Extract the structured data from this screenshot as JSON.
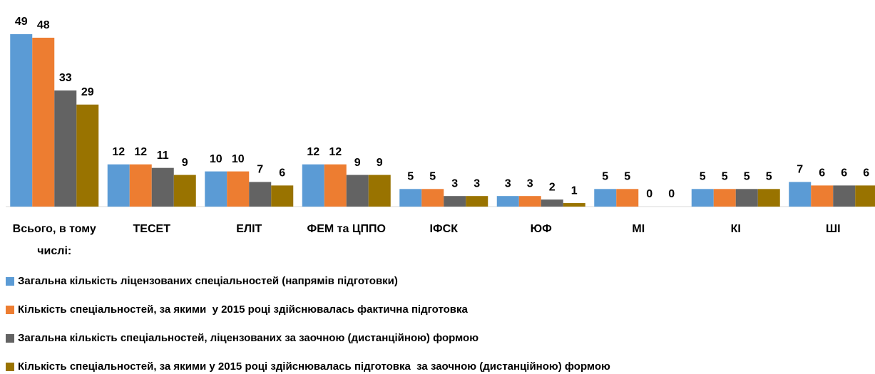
{
  "chart_data": {
    "type": "bar",
    "categories": [
      "Всього, в тому числі:",
      "ТЕСЕТ",
      "ЕЛІТ",
      "ФЕМ та ЦППО",
      "ІФСК",
      "ЮФ",
      "МІ",
      "КІ",
      "ШІ"
    ],
    "series": [
      {
        "name": "Загальна кількість ліцензованих спеціальностей (напрямів підготовки)",
        "color": "#5b9bd5",
        "values": [
          49,
          12,
          10,
          12,
          5,
          3,
          5,
          5,
          7
        ]
      },
      {
        "name": "Кількість спеціальностей, за якими  у 2015 році здійснювалась фактична підготовка",
        "color": "#ed7d31",
        "values": [
          48,
          12,
          10,
          12,
          5,
          3,
          5,
          5,
          6
        ]
      },
      {
        "name": "Загальна кількість спеціальностей, ліцензованих за заочною (дистанційною) формою",
        "color": "#636363",
        "values": [
          33,
          11,
          7,
          9,
          3,
          2,
          0,
          5,
          6
        ]
      },
      {
        "name": "Кількість спеціальностей, за якими у 2015 році здійснювалась підготовка  за заочною (дистанційною) формою",
        "color": "#997300",
        "values": [
          29,
          9,
          6,
          9,
          3,
          1,
          0,
          5,
          6
        ]
      }
    ],
    "legend": "bottom"
  }
}
